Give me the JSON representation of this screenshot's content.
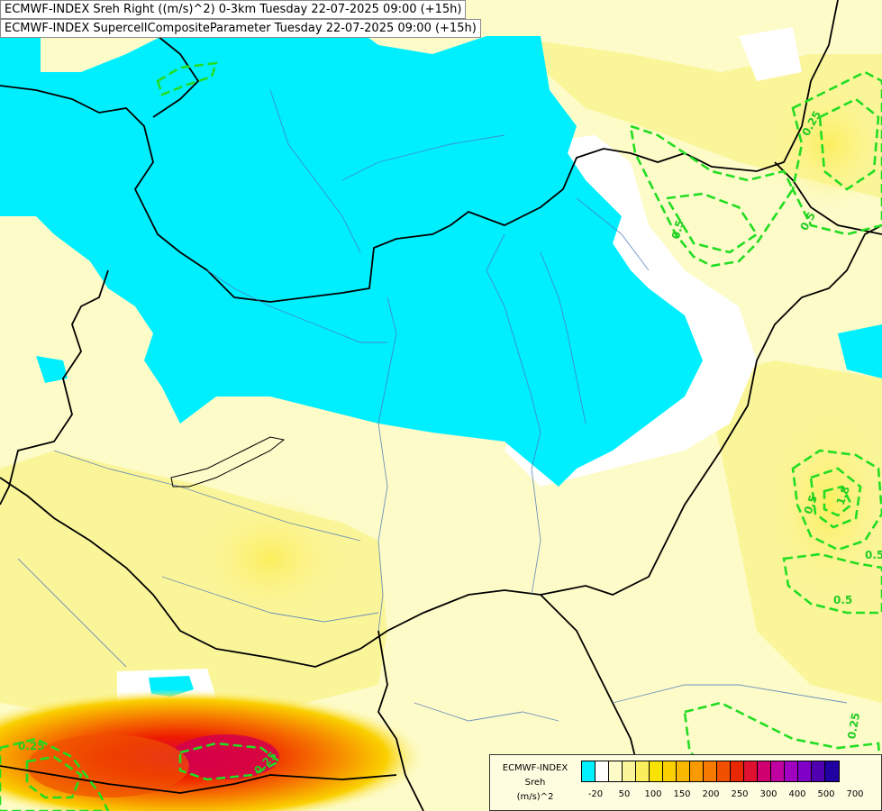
{
  "header": {
    "line1": "ECMWF-INDEX Sreh Right ((m/s)^2) 0-3km Tuesday 22-07-2025 09:00 (+15h)",
    "line2": "ECMWF-INDEX SupercellCompositeParameter Tuesday 22-07-2025 09:00 (+15h)"
  },
  "contour_labels": [
    "0.25",
    "0.25",
    "0.5",
    "0.5",
    "0.5",
    "0.5",
    "0.5",
    "0.25",
    "1.8",
    "0.25"
  ],
  "legend": {
    "title1": "ECMWF-INDEX",
    "title2": "Sreh",
    "title3": "(m/s)^2",
    "colors": [
      "#00f0ff",
      "#ffffff",
      "#fdfbc8",
      "#fbf59a",
      "#fbee5c",
      "#fae200",
      "#fad000",
      "#f8b800",
      "#f89a00",
      "#f67a00",
      "#f05000",
      "#e82800",
      "#e01030",
      "#d00070",
      "#c000a0",
      "#a000c0",
      "#8000c8",
      "#5000b0",
      "#2000a0"
    ],
    "ticks": [
      "-20",
      "50",
      "100",
      "150",
      "200",
      "250",
      "300",
      "400",
      "500",
      "700"
    ]
  }
}
